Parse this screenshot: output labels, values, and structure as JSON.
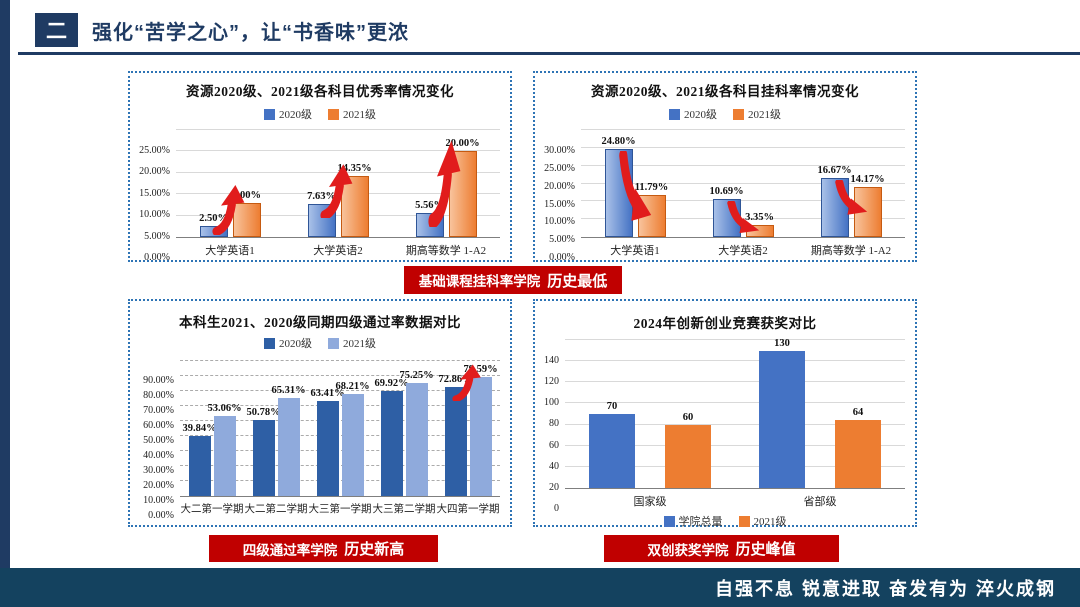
{
  "header": {
    "section_number": "二",
    "title": "强化“苦学之心”，让“书香味”更浓"
  },
  "banners": [
    {
      "text": "基础课程挂科率学院",
      "highlight": "历史最低"
    },
    {
      "text": "四级通过率学院",
      "highlight": "历史新高"
    },
    {
      "text": "双创获奖学院",
      "highlight": "历史峰值"
    }
  ],
  "footer": {
    "motto": "自强不息 锐意进取 奋发有为 淬火成钢"
  },
  "colors": {
    "navy": "#1F3B63",
    "footer_navy": "#14425F",
    "banner_red": "#C00000",
    "arrow_red": "#E11C1C",
    "panel_border_blue": "#2E74B5"
  },
  "chart_data": [
    {
      "type": "bar",
      "title": "资源2020级、2021级各科目优秀率情况变化",
      "legend_position": "top",
      "categories": [
        "大学英语1",
        "大学英语2",
        "期高等数学 1-A2"
      ],
      "series": [
        {
          "name": "2020级",
          "color": "#4472C4",
          "color_light": "#A9C1E8",
          "border": "#2F5597",
          "values": [
            2.5,
            7.63,
            5.56
          ],
          "labels": [
            "2.50%",
            "7.63%",
            "5.56%"
          ]
        },
        {
          "name": "2021级",
          "color": "#ED7D31",
          "color_light": "#F8C39C",
          "border": "#C55A11",
          "values": [
            8.0,
            14.35,
            20.0
          ],
          "labels": [
            "8.00%",
            "14.35%",
            "20.00%"
          ]
        }
      ],
      "ylim": [
        0,
        25
      ],
      "yticks": [
        "0.00%",
        "5.00%",
        "10.00%",
        "15.00%",
        "20.00%",
        "25.00%"
      ],
      "grid": "solid",
      "arrows": {
        "dir": "up",
        "groups": [
          0,
          1,
          2
        ]
      }
    },
    {
      "type": "bar",
      "title": "资源2020级、2021级各科目挂科率情况变化",
      "legend_position": "top",
      "categories": [
        "大学英语1",
        "大学英语2",
        "期高等数学 1-A2"
      ],
      "series": [
        {
          "name": "2020级",
          "color": "#4472C4",
          "color_light": "#A9C1E8",
          "border": "#2F5597",
          "values": [
            24.8,
            10.69,
            16.67
          ],
          "labels": [
            "24.80%",
            "10.69%",
            "16.67%"
          ]
        },
        {
          "name": "2021级",
          "color": "#ED7D31",
          "color_light": "#F8C39C",
          "border": "#C55A11",
          "values": [
            11.79,
            3.35,
            14.17
          ],
          "labels": [
            "11.79%",
            "3.35%",
            "14.17%"
          ]
        }
      ],
      "ylim": [
        0,
        30
      ],
      "yticks": [
        "0.00%",
        "5.00%",
        "10.00%",
        "15.00%",
        "20.00%",
        "25.00%",
        "30.00%"
      ],
      "grid": "solid",
      "arrows": {
        "dir": "down",
        "groups": [
          0,
          1,
          2
        ]
      }
    },
    {
      "type": "bar",
      "title": "本科生2021、2020级同期四级通过率数据对比",
      "legend_position": "top",
      "categories": [
        "大二第一学期",
        "大二第二学期",
        "大三第一学期",
        "大三第二学期",
        "大四第一学期"
      ],
      "series": [
        {
          "name": "2020级",
          "color": "#2E5FA5",
          "values": [
            39.84,
            50.78,
            63.41,
            69.92,
            72.86
          ],
          "labels": [
            "39.84%",
            "50.78%",
            "63.41%",
            "69.92%",
            "72.86%"
          ]
        },
        {
          "name": "2021级",
          "color": "#8FAADC",
          "values": [
            53.06,
            65.31,
            68.21,
            75.25,
            79.59
          ],
          "labels": [
            "53.06%",
            "65.31%",
            "68.21%",
            "75.25%",
            "79.59%"
          ]
        }
      ],
      "ylim": [
        0,
        90
      ],
      "yticks": [
        "0.00%",
        "10.00%",
        "20.00%",
        "30.00%",
        "40.00%",
        "50.00%",
        "60.00%",
        "70.00%",
        "80.00%",
        "90.00%"
      ],
      "grid": "dashed",
      "arrows": {
        "dir": "up",
        "groups": [
          4
        ]
      }
    },
    {
      "type": "bar",
      "title": "2024年创新创业竞赛获奖对比",
      "legend_position": "bottom",
      "categories": [
        "国家级",
        "省部级"
      ],
      "series": [
        {
          "name": "学院总量",
          "color": "#4472C4",
          "values": [
            70,
            130
          ],
          "labels": [
            "70",
            "130"
          ]
        },
        {
          "name": "2021级",
          "color": "#ED7D31",
          "values": [
            60,
            64
          ],
          "labels": [
            "60",
            "64"
          ]
        }
      ],
      "ylim": [
        0,
        140
      ],
      "yticks": [
        "0",
        "20",
        "40",
        "60",
        "80",
        "100",
        "120",
        "140"
      ],
      "grid": "solid",
      "arrows": null
    }
  ]
}
